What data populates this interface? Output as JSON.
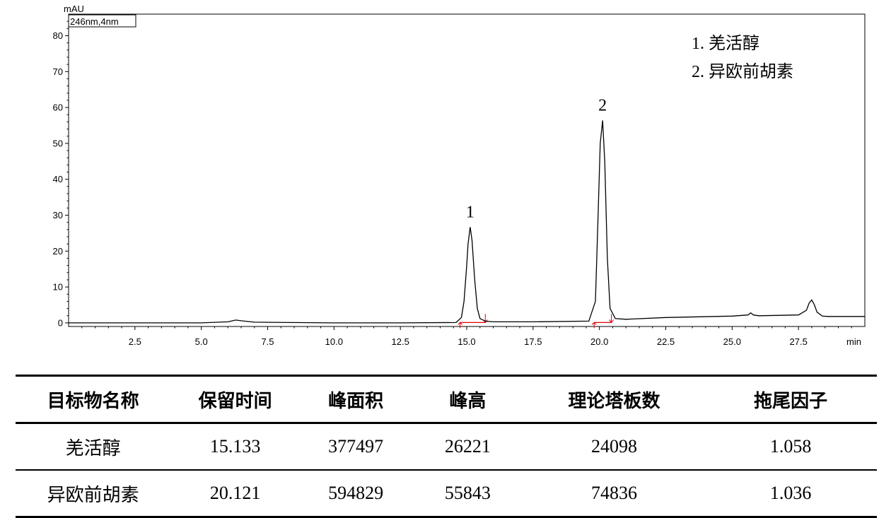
{
  "chart_data": {
    "type": "line",
    "title": "",
    "ylabel": "mAU",
    "xlabel": "min",
    "channel_label": "246nm,4nm",
    "xlim": [
      0,
      30
    ],
    "ylim": [
      -1,
      86
    ],
    "x_ticks": [
      2.5,
      5.0,
      7.5,
      10.0,
      12.5,
      15.0,
      17.5,
      20.0,
      22.5,
      25.0,
      27.5
    ],
    "x_tick_labels": [
      "2.5",
      "5.0",
      "7.5",
      "10.0",
      "12.5",
      "15.0",
      "17.5",
      "20.0",
      "22.5",
      "25.0",
      "27.5"
    ],
    "y_ticks": [
      0,
      10,
      20,
      30,
      40,
      50,
      60,
      70,
      80
    ],
    "y_tick_labels": [
      "0",
      "10",
      "20",
      "30",
      "40",
      "50",
      "60",
      "70",
      "80"
    ],
    "grid": false,
    "series": [
      {
        "x": [
          0,
          2.5,
          5.0,
          6.0,
          6.3,
          6.5,
          7.0,
          10.0,
          12.5,
          14.6,
          14.8,
          14.9,
          15.0,
          15.05,
          15.13,
          15.2,
          15.3,
          15.4,
          15.5,
          15.7,
          16.0,
          17.5,
          19.6,
          19.85,
          19.95,
          20.03,
          20.12,
          20.2,
          20.3,
          20.4,
          20.6,
          21.0,
          22.5,
          25.0,
          25.6,
          25.7,
          25.8,
          26.0,
          27.5,
          27.8,
          27.9,
          28.0,
          28.1,
          28.2,
          28.4,
          28.6,
          30.0
        ],
        "y": [
          0,
          0,
          0,
          0.3,
          0.8,
          0.6,
          0.2,
          0,
          0,
          0.1,
          1.5,
          6.0,
          16.0,
          22.0,
          26.7,
          23.0,
          12.0,
          4.0,
          1.2,
          0.5,
          0.3,
          0.3,
          0.5,
          6.0,
          30.0,
          50.0,
          56.4,
          45.0,
          18.0,
          4.0,
          1.2,
          1.0,
          1.5,
          1.9,
          2.2,
          2.8,
          2.2,
          2.0,
          2.2,
          3.5,
          5.5,
          6.4,
          5.0,
          3.0,
          1.9,
          1.8,
          1.8
        ]
      }
    ],
    "peak_labels": [
      {
        "text": "1",
        "x": 15.13,
        "y": 26.7
      },
      {
        "text": "2",
        "x": 20.12,
        "y": 56.4
      }
    ],
    "integration_marks": [
      {
        "from": 14.75,
        "to": 15.7
      },
      {
        "from": 19.8,
        "to": 20.45
      }
    ],
    "legend": {
      "placement": "top-right",
      "entries": [
        "1.  羌活醇",
        "2.  异欧前胡素"
      ]
    }
  },
  "table": {
    "headers": [
      "目标物名称",
      "保留时间",
      "峰面积",
      "峰高",
      "理论塔板数",
      "拖尾因子"
    ],
    "rows": [
      [
        "羌活醇",
        "15.133",
        "377497",
        "26221",
        "24098",
        "1.058"
      ],
      [
        "异欧前胡素",
        "20.121",
        "594829",
        "55843",
        "74836",
        "1.036"
      ]
    ]
  }
}
